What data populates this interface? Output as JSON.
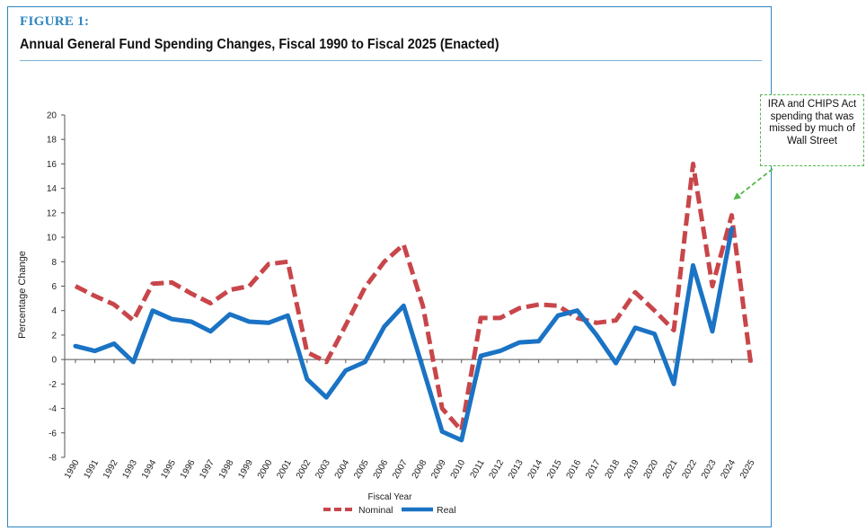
{
  "figure_label": "FIGURE 1:",
  "title": "Annual General Fund Spending Changes, Fiscal 1990 to Fiscal 2025 (Enacted)",
  "annotation": "IRA and CHIPS Act spending that was missed by much of Wall Street",
  "colors": {
    "frame": "#2e86c1",
    "nominal": "#c8464a",
    "real": "#1a73c4",
    "annotation": "#52b848"
  },
  "chart_data": {
    "type": "line",
    "xlabel": "Fiscal Year",
    "ylabel": "Percentage Change",
    "ylim": [
      -8,
      20
    ],
    "yticks": [
      -8,
      -6,
      -4,
      -2,
      0,
      2,
      4,
      6,
      8,
      10,
      12,
      14,
      16,
      18,
      20
    ],
    "x": [
      "1990",
      "1991",
      "1992",
      "1993",
      "1994",
      "1995",
      "1996",
      "1997",
      "1998",
      "1999",
      "2000",
      "2001",
      "2002",
      "2003",
      "2004",
      "2005",
      "2006",
      "2007",
      "2008",
      "2009",
      "2010",
      "2011",
      "2012",
      "2013",
      "2014",
      "2015",
      "2016",
      "2017",
      "2018",
      "2019",
      "2020",
      "2021",
      "2022",
      "2023",
      "2024",
      "2025"
    ],
    "legend_position": "bottom",
    "grid": false,
    "series": [
      {
        "name": "Nominal",
        "style": "dashed",
        "values": [
          6.0,
          5.2,
          4.5,
          3.2,
          6.2,
          6.3,
          5.4,
          4.6,
          5.7,
          6.0,
          7.8,
          8.0,
          0.6,
          -0.2,
          2.8,
          5.9,
          8.0,
          9.4,
          4.4,
          -4.0,
          -5.8,
          3.4,
          3.4,
          4.2,
          4.5,
          4.4,
          3.4,
          3.0,
          3.2,
          5.5,
          4.0,
          2.4,
          16.0,
          6.0,
          11.8,
          -0.5
        ]
      },
      {
        "name": "Real",
        "style": "solid",
        "values": [
          1.1,
          0.7,
          1.3,
          -0.2,
          4.0,
          3.3,
          3.1,
          2.3,
          3.7,
          3.1,
          3.0,
          3.6,
          -1.6,
          -3.1,
          -0.9,
          -0.2,
          2.7,
          4.4,
          -0.7,
          -5.9,
          -6.6,
          0.3,
          0.7,
          1.4,
          1.5,
          3.6,
          4.0,
          2.0,
          -0.3,
          2.6,
          2.1,
          -2.0,
          7.7,
          2.3,
          10.7,
          null
        ]
      }
    ]
  }
}
